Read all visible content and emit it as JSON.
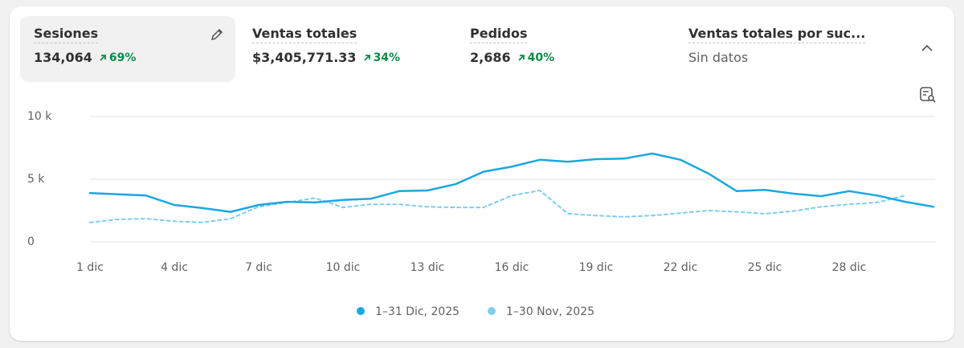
{
  "metrics": [
    {
      "title": "Sesiones",
      "value": "134,064",
      "change": "69%"
    },
    {
      "title": "Ventas totales",
      "value": "$3,405,771.33",
      "change": "34%"
    },
    {
      "title": "Pedidos",
      "value": "2,686",
      "change": "40%"
    },
    {
      "title": "Ventas totales por suc...",
      "value": "Sin datos"
    }
  ],
  "chart_data": {
    "type": "line",
    "categories": [
      "1 dic",
      null,
      null,
      "4 dic",
      null,
      null,
      "7 dic",
      null,
      null,
      "10 dic",
      null,
      null,
      "13 dic",
      null,
      null,
      "16 dic",
      null,
      null,
      "19 dic",
      null,
      null,
      "22 dic",
      null,
      null,
      "25 dic",
      null,
      null,
      "28 dic",
      null,
      null,
      null
    ],
    "series": [
      {
        "name": "1–31 Dic, 2025",
        "color": "#1ba7e2",
        "dashed": false,
        "values": [
          3900,
          3800,
          3700,
          2950,
          2700,
          2400,
          2950,
          3200,
          3150,
          3350,
          3450,
          4050,
          4100,
          4600,
          5600,
          6000,
          6550,
          6400,
          6600,
          6650,
          7050,
          6550,
          5450,
          4050,
          4150,
          3850,
          3650,
          4050,
          3700,
          3200,
          2800
        ]
      },
      {
        "name": "1–30 Nov, 2025",
        "color": "#7ecdee",
        "dashed": true,
        "values": [
          1550,
          1800,
          1850,
          1650,
          1550,
          1850,
          2800,
          3150,
          3500,
          2750,
          3000,
          3000,
          2800,
          2750,
          2750,
          3700,
          4100,
          2250,
          2100,
          2000,
          2100,
          2300,
          2500,
          2400,
          2250,
          2450,
          2800,
          3000,
          3150,
          3700,
          null
        ]
      }
    ],
    "ylim": [
      0,
      10000
    ],
    "yticks": [
      0,
      {
        "value": 5000,
        "label": "5 k"
      },
      {
        "value": 10000,
        "label": "10 k"
      }
    ],
    "grid": true
  }
}
